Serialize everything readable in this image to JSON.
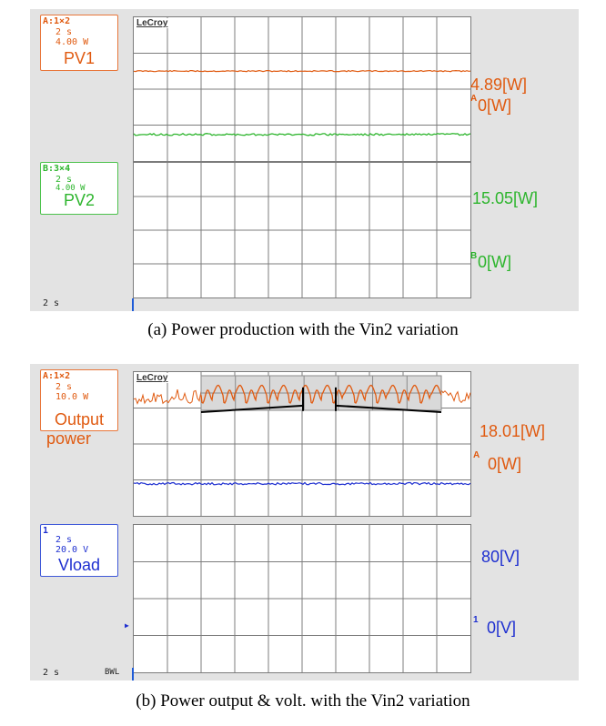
{
  "panel_a": {
    "brand": "LeCroy",
    "box1": {
      "header": "A:1×2",
      "timebase": "2 s",
      "scale": "4.00 W",
      "label": "PV1"
    },
    "box2": {
      "header": "B:3×4",
      "timebase": "2 s",
      "scale": "4.00 W",
      "label": "PV2"
    },
    "pv1_value_label": "4.89[W]",
    "pv1_zero_label": "0[W]",
    "pv1_zero_marker": "A",
    "pv2_value_label": "15.05[W]",
    "pv2_zero_label": "0[W]",
    "pv2_zero_marker": "B",
    "timebase_label": "2 s",
    "caption": "(a) Power production with the Vin2 variation"
  },
  "panel_b": {
    "brand": "LeCroy",
    "box1": {
      "header": "A:1×2",
      "timebase": "2 s",
      "scale": "10.0 W",
      "label": "Output",
      "label2": "power"
    },
    "box2": {
      "header": "1",
      "timebase": "2 s",
      "scale": "20.0 V",
      "label": "Vload"
    },
    "power_value_label": "18.01[W]",
    "power_zero_label": "0[W]",
    "power_zero_marker": "A",
    "voltage_value_label": "80[V]",
    "voltage_zero_label": "0[V]",
    "voltage_zero_marker": "1",
    "timebase_label": "2 s",
    "bwl_label": "BWL",
    "caption": "(b) Power output & volt. with the Vin2 variation"
  },
  "colors": {
    "orange": "#e05a10",
    "green": "#2db52d",
    "blue": "#1e2fd0",
    "grid": "#7c7c7c",
    "bezel": "#e3e3e3"
  },
  "chart_data": [
    {
      "type": "line",
      "title": "",
      "series": [
        {
          "name": "PV1",
          "values": [
            4.89
          ]
        }
      ],
      "x_unit_per_div": "2 s",
      "y_unit_per_div": "4.00 W",
      "divisions_x": 10,
      "divisions_y": 4
    },
    {
      "type": "line",
      "title": "",
      "series": [
        {
          "name": "PV2",
          "values": [
            15.05
          ]
        }
      ],
      "x_unit_per_div": "2 s",
      "y_unit_per_div": "4.00 W",
      "divisions_x": 10,
      "divisions_y": 4
    },
    {
      "type": "line",
      "title": "",
      "series": [
        {
          "name": "Output power",
          "values": [
            18.01
          ]
        }
      ],
      "x_unit_per_div": "2 s",
      "y_unit_per_div": "10.0 W",
      "divisions_x": 10,
      "divisions_y": 4,
      "zoom_inset": true
    },
    {
      "type": "line",
      "title": "",
      "series": [
        {
          "name": "Vload",
          "values": [
            80
          ]
        }
      ],
      "x_unit_per_div": "2 s",
      "y_unit_per_div": "20.0 V",
      "divisions_x": 10,
      "divisions_y": 4
    }
  ]
}
